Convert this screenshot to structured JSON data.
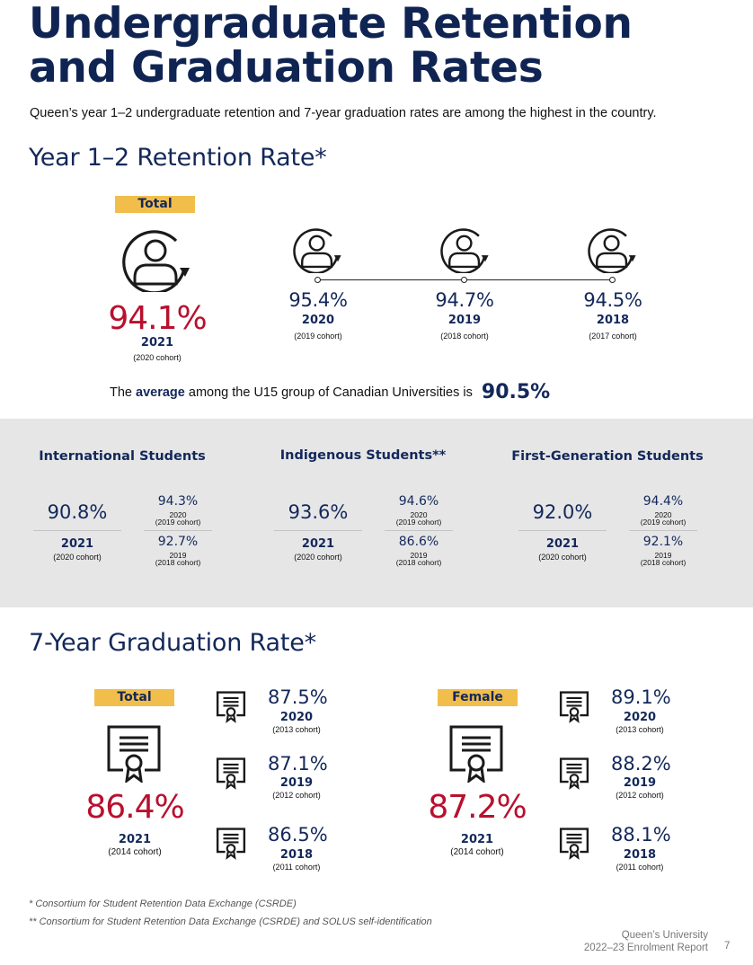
{
  "title": "Undergraduate Retention and Graduation Rates",
  "intro": "Queen’s year 1–2 undergraduate retention and 7-year graduation rates are among the highest in the country.",
  "retention": {
    "heading": "Year 1–2 Retention Rate*",
    "total_label": "Total",
    "current": {
      "pct": "94.1%",
      "year": "2021",
      "cohort": "(2020 cohort)"
    },
    "history": [
      {
        "pct": "95.4%",
        "year": "2020",
        "cohort": "(2019 cohort)"
      },
      {
        "pct": "94.7%",
        "year": "2019",
        "cohort": "(2018 cohort)"
      },
      {
        "pct": "94.5%",
        "year": "2018",
        "cohort": "(2017 cohort)"
      }
    ],
    "average_prefix": "The",
    "average_bold": "average",
    "average_suffix": "among the U15 group of Canadian Universities is",
    "average_value": "90.5%"
  },
  "groups": [
    {
      "title": "International Students",
      "main_pct": "90.8%",
      "main_year": "2021",
      "main_cohort": "(2020 cohort)",
      "prev": [
        {
          "pct": "94.3%",
          "year": "2020",
          "cohort": "(2019 cohort)"
        },
        {
          "pct": "92.7%",
          "year": "2019",
          "cohort": "(2018 cohort)"
        }
      ]
    },
    {
      "title": "Indigenous Students**",
      "main_pct": "93.6%",
      "main_year": "2021",
      "main_cohort": "(2020 cohort)",
      "prev": [
        {
          "pct": "94.6%",
          "year": "2020",
          "cohort": "(2019 cohort)"
        },
        {
          "pct": "86.6%",
          "year": "2019",
          "cohort": "(2018 cohort)"
        }
      ]
    },
    {
      "title": "First-Generation Students",
      "main_pct": "92.0%",
      "main_year": "2021",
      "main_cohort": "(2020 cohort)",
      "prev": [
        {
          "pct": "94.4%",
          "year": "2020",
          "cohort": "(2019 cohort)"
        },
        {
          "pct": "92.1%",
          "year": "2019",
          "cohort": "(2018 cohort)"
        }
      ]
    }
  ],
  "graduation": {
    "heading": "7-Year Graduation Rate*",
    "total": {
      "label": "Total",
      "pct": "86.4%",
      "year": "2021",
      "cohort": "(2014 cohort)",
      "history": [
        {
          "pct": "87.5%",
          "year": "2020",
          "cohort": "(2013 cohort)"
        },
        {
          "pct": "87.1%",
          "year": "2019",
          "cohort": "(2012 cohort)"
        },
        {
          "pct": "86.5%",
          "year": "2018",
          "cohort": "(2011 cohort)"
        }
      ]
    },
    "female": {
      "label": "Female",
      "pct": "87.2%",
      "year": "2021",
      "cohort": "(2014 cohort)",
      "history": [
        {
          "pct": "89.1%",
          "year": "2020",
          "cohort": "(2013 cohort)"
        },
        {
          "pct": "88.2%",
          "year": "2019",
          "cohort": "(2012 cohort)"
        },
        {
          "pct": "88.1%",
          "year": "2018",
          "cohort": "(2011 cohort)"
        }
      ]
    }
  },
  "footnotes": [
    "* Consortium for Student Retention Data Exchange (CSRDE)",
    "** Consortium for Student Retention Data Exchange (CSRDE) and SOLUS self-identification"
  ],
  "footer": {
    "org": "Queen’s University",
    "report": "2022–23 Enrolment Report",
    "page": "7"
  },
  "colors": {
    "navy": "#13285a",
    "red": "#b8102e",
    "gold": "#f2be4b",
    "band": "#e6e6e7"
  },
  "icons": {
    "person": "person-cycle-icon",
    "diploma": "diploma-certificate-icon"
  }
}
